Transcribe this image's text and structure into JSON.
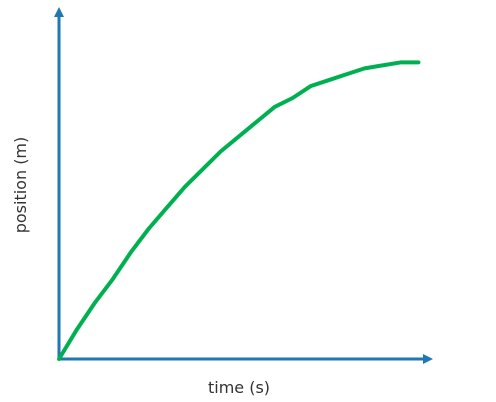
{
  "chart_data": {
    "type": "line",
    "xlabel": "time (s)",
    "ylabel": "position (m)",
    "grid": false,
    "xlim": [
      0,
      1.06
    ],
    "ylim": [
      0,
      1.17
    ],
    "series": [
      {
        "color": "#00b050",
        "x": [
          0,
          0.05,
          0.1,
          0.15,
          0.2,
          0.25,
          0.3,
          0.35,
          0.4,
          0.45,
          0.5,
          0.55,
          0.6,
          0.65,
          0.7,
          0.75,
          0.8,
          0.85,
          0.9,
          0.95,
          1.0
        ],
        "y": [
          0,
          0.1,
          0.19,
          0.27,
          0.36,
          0.44,
          0.51,
          0.58,
          0.64,
          0.7,
          0.75,
          0.8,
          0.85,
          0.88,
          0.92,
          0.94,
          0.96,
          0.98,
          0.99,
          1.0,
          1.0
        ]
      }
    ]
  },
  "colors": {
    "axis": "#1f77b4",
    "curve": "#00b050",
    "text": "#333333"
  }
}
